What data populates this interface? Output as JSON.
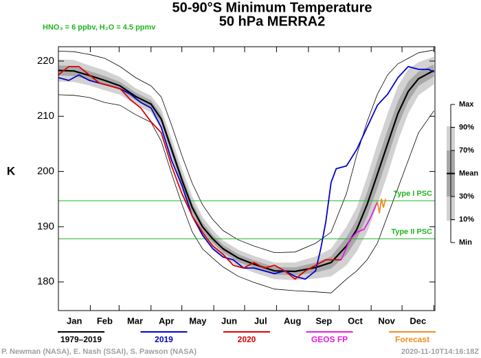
{
  "chart_data": {
    "type": "line",
    "title": "50-90°S Minimum Temperature",
    "subtitle": "50 hPa   MERRA2",
    "note": "HNO₃ = 6 ppbv, H₂O = 4.5 ppmv",
    "ylabel": "K",
    "xlim": [
      0,
      366
    ],
    "ylim": [
      174.8,
      222.6
    ],
    "yticks": [
      180,
      190,
      200,
      210,
      220
    ],
    "xticks": [
      0,
      31,
      59,
      90,
      120,
      151,
      181,
      212,
      243,
      273,
      304,
      334,
      365
    ],
    "categories": [
      "Jan",
      "Feb",
      "Mar",
      "Apr",
      "May",
      "Jun",
      "Jul",
      "Aug",
      "Sep",
      "Oct",
      "Nov",
      "Dec"
    ],
    "climatology": {
      "x": [
        0,
        15,
        30,
        45,
        60,
        75,
        90,
        100,
        110,
        120,
        130,
        140,
        150,
        160,
        175,
        190,
        210,
        230,
        250,
        265,
        280,
        290,
        300,
        310,
        320,
        330,
        340,
        350,
        365
      ],
      "min": [
        213.9,
        213.8,
        213.4,
        212.5,
        212.0,
        210.3,
        208.9,
        205.5,
        199.6,
        194.1,
        189.1,
        186.0,
        184.3,
        182.7,
        181.0,
        179.9,
        178.7,
        178.4,
        178.2,
        178.0,
        180.5,
        182.0,
        184.0,
        187.0,
        192.0,
        197.0,
        202.0,
        207.0,
        211.0
      ],
      "p10": [
        216.3,
        216.2,
        215.6,
        214.7,
        213.9,
        212.1,
        210.7,
        207.7,
        202.0,
        196.5,
        191.5,
        188.2,
        186.2,
        184.5,
        182.8,
        181.7,
        180.5,
        180.3,
        180.6,
        181.0,
        183.0,
        185.5,
        189.0,
        194.0,
        199.5,
        205.5,
        210.5,
        213.8,
        215.8
      ],
      "p30": [
        217.4,
        217.3,
        216.6,
        215.7,
        214.8,
        212.9,
        211.5,
        208.7,
        203.1,
        197.6,
        192.6,
        189.2,
        187.1,
        185.3,
        183.6,
        182.5,
        181.3,
        181.2,
        181.7,
        182.4,
        184.9,
        187.7,
        191.8,
        197.0,
        202.5,
        208.3,
        212.7,
        215.5,
        217.2
      ],
      "p70": [
        219.2,
        219.1,
        218.2,
        217.3,
        216.2,
        214.3,
        212.9,
        210.3,
        204.9,
        199.4,
        194.4,
        190.8,
        188.5,
        186.7,
        185.0,
        183.9,
        182.7,
        182.6,
        183.5,
        184.6,
        188.1,
        191.3,
        196.2,
        202.0,
        207.5,
        212.7,
        216.3,
        218.1,
        219.4
      ],
      "p90": [
        220.3,
        220.2,
        219.2,
        218.3,
        217.1,
        215.1,
        213.7,
        211.3,
        206.0,
        200.5,
        195.5,
        191.8,
        189.4,
        187.5,
        185.8,
        184.7,
        183.5,
        183.5,
        184.6,
        186.0,
        190.0,
        193.5,
        199.0,
        205.0,
        210.5,
        215.5,
        218.5,
        219.8,
        220.8
      ],
      "max": [
        221.8,
        221.7,
        221.2,
        220.5,
        219.0,
        217.0,
        215.5,
        213.5,
        208.4,
        202.9,
        197.9,
        194.0,
        191.3,
        189.3,
        187.6,
        186.5,
        185.3,
        185.4,
        187.0,
        189.0,
        196.0,
        203.0,
        209.0,
        214.0,
        217.5,
        219.5,
        220.5,
        221.5,
        222.0
      ]
    },
    "band_key": [
      "Max",
      "90%",
      "70%",
      "Mean",
      "30%",
      "10%",
      "Min"
    ],
    "series": [
      {
        "name": "1979–2019",
        "color": "#000000",
        "x": [
          0,
          15,
          30,
          45,
          60,
          75,
          90,
          100,
          110,
          120,
          130,
          140,
          150,
          160,
          175,
          190,
          210,
          230,
          250,
          265,
          280,
          290,
          300,
          310,
          320,
          330,
          340,
          350,
          365
        ],
        "values": [
          218.3,
          218.2,
          217.4,
          216.5,
          215.5,
          213.6,
          212.2,
          209.5,
          204,
          198.5,
          193.5,
          190,
          187.8,
          186,
          184.3,
          183.2,
          182,
          181.9,
          182.6,
          183.5,
          186.5,
          189.5,
          194,
          199.5,
          205,
          210.5,
          214.5,
          216.8,
          218.3
        ]
      },
      {
        "name": "2019",
        "color": "#0000cc",
        "x": [
          0,
          10,
          20,
          30,
          40,
          50,
          60,
          70,
          80,
          90,
          100,
          110,
          120,
          130,
          140,
          150,
          160,
          170,
          180,
          190,
          200,
          210,
          220,
          230,
          240,
          250,
          255,
          260,
          265,
          270,
          280,
          290,
          300,
          310,
          320,
          330,
          340,
          350,
          360,
          365
        ],
        "values": [
          217,
          216.5,
          217.5,
          216.5,
          216,
          215.5,
          215,
          214,
          212.5,
          211.5,
          208,
          202,
          197.5,
          192,
          188.5,
          186,
          184.5,
          184,
          182.5,
          182.5,
          182,
          181.5,
          182,
          181,
          180.5,
          182,
          186,
          191,
          198,
          200.5,
          201,
          204,
          208,
          212,
          214,
          217,
          219,
          218.5,
          218.5,
          218
        ]
      },
      {
        "name": "2020",
        "color": "#dd0000",
        "x": [
          0,
          10,
          20,
          30,
          40,
          50,
          60,
          70,
          80,
          90,
          100,
          110,
          120,
          130,
          140,
          150,
          160,
          170,
          180,
          190,
          200,
          210,
          220,
          230,
          240,
          250,
          260,
          275
        ],
        "values": [
          217.5,
          219,
          219,
          217.5,
          216,
          215.5,
          215,
          213,
          211.5,
          209,
          207,
          201,
          196,
          192,
          189,
          186.5,
          185,
          183,
          182.5,
          183.5,
          182.5,
          183,
          182,
          180.5,
          182,
          183,
          184,
          184
        ]
      },
      {
        "name": "GEOS FP",
        "color": "#e020e0",
        "x": [
          275,
          283,
          290,
          297,
          303,
          310
        ],
        "values": [
          184,
          187.5,
          189,
          189.5,
          191.5,
          194.5
        ]
      },
      {
        "name": "Forecast",
        "color": "#f08c1e",
        "x": [
          310,
          312,
          314,
          316,
          318
        ],
        "values": [
          194.5,
          192.5,
          195,
          193.5,
          195
        ]
      }
    ],
    "thresholds": [
      {
        "label": "Type I PSC",
        "value": 194.7
      },
      {
        "label": "Type II PSC",
        "value": 187.8
      }
    ],
    "threshold_color": "#22b422",
    "band_colors": {
      "outer": "#d2d2d2",
      "inner": "#a8a8a8"
    },
    "credit": "P. Newman (NASA), E. Nash (SSAI), S. Pawson (NASA)",
    "timestamp": "2020-11-10T14:16:18Z"
  }
}
